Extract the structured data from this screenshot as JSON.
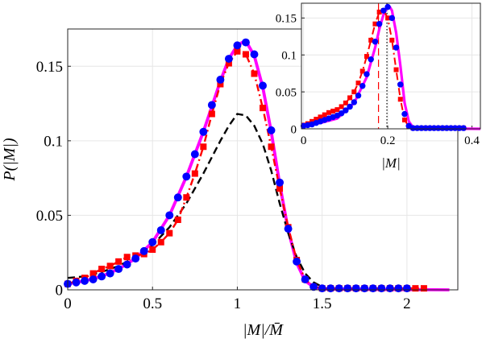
{
  "chart_data": [
    {
      "type": "line",
      "role": "main",
      "xlabel": "|M|/M̄",
      "ylabel": "P(|M|)",
      "xlim": [
        0,
        2.3
      ],
      "ylim": [
        0,
        0.175
      ],
      "xticks": [
        0,
        0.5,
        1,
        1.5,
        2
      ],
      "xtick_labels": [
        "0",
        "0.5",
        "1",
        "1.5",
        "2"
      ],
      "yticks": [
        0,
        0.05,
        0.1,
        0.15
      ],
      "ytick_labels": [
        "0",
        "0.05",
        "0.1",
        "0.15"
      ],
      "grid": true,
      "series": [
        {
          "style": "solid",
          "color": "#ff00ff",
          "x": [
            0,
            0.1,
            0.2,
            0.3,
            0.4,
            0.5,
            0.6,
            0.7,
            0.8,
            0.9,
            0.95,
            1.0,
            1.03,
            1.06,
            1.1,
            1.15,
            1.2,
            1.25,
            1.3,
            1.35,
            1.4,
            1.45,
            1.5,
            2.25
          ],
          "y": [
            0.004,
            0.006,
            0.009,
            0.014,
            0.021,
            0.032,
            0.05,
            0.076,
            0.106,
            0.14,
            0.155,
            0.164,
            0.166,
            0.165,
            0.157,
            0.136,
            0.106,
            0.071,
            0.04,
            0.018,
            0.006,
            0.002,
            0.0005,
            0.0
          ]
        },
        {
          "style": "dashed",
          "color": "#000000",
          "x": [
            0,
            0.1,
            0.2,
            0.3,
            0.4,
            0.5,
            0.6,
            0.7,
            0.8,
            0.9,
            0.95,
            1.0,
            1.05,
            1.1,
            1.15,
            1.2,
            1.25,
            1.3,
            1.35,
            1.4,
            1.45,
            1.5
          ],
          "y": [
            0.008,
            0.009,
            0.012,
            0.016,
            0.022,
            0.03,
            0.042,
            0.058,
            0.078,
            0.1,
            0.11,
            0.118,
            0.117,
            0.11,
            0.098,
            0.08,
            0.058,
            0.038,
            0.022,
            0.011,
            0.005,
            0.002
          ]
        },
        {
          "style": "dashdot",
          "color": "#ff0000",
          "marker": "square",
          "x": [
            0,
            0.05,
            0.1,
            0.15,
            0.2,
            0.25,
            0.3,
            0.35,
            0.4,
            0.45,
            0.5,
            0.55,
            0.6,
            0.65,
            0.7,
            0.75,
            0.8,
            0.85,
            0.9,
            0.95,
            1.0,
            1.05,
            1.1,
            1.15,
            1.2,
            1.25,
            1.3,
            1.35,
            1.4,
            1.45,
            1.5,
            1.55,
            1.6,
            1.65,
            1.7,
            1.75,
            1.8,
            1.85,
            1.9,
            1.95,
            2.0,
            2.05,
            2.1
          ],
          "y": [
            0.004,
            0.006,
            0.008,
            0.011,
            0.014,
            0.016,
            0.019,
            0.022,
            0.023,
            0.024,
            0.027,
            0.032,
            0.038,
            0.047,
            0.062,
            0.078,
            0.096,
            0.118,
            0.138,
            0.152,
            0.16,
            0.158,
            0.145,
            0.122,
            0.096,
            0.068,
            0.042,
            0.02,
            0.007,
            0.002,
            0.001,
            0.001,
            0.001,
            0.001,
            0.001,
            0.001,
            0.001,
            0.001,
            0.001,
            0.001,
            0.001,
            0.001,
            0.001
          ]
        },
        {
          "style": "markers",
          "color": "#0000ff",
          "marker": "circle",
          "x": [
            0,
            0.05,
            0.1,
            0.15,
            0.2,
            0.25,
            0.3,
            0.35,
            0.4,
            0.45,
            0.5,
            0.55,
            0.6,
            0.65,
            0.7,
            0.75,
            0.8,
            0.85,
            0.9,
            0.95,
            1.0,
            1.05,
            1.1,
            1.15,
            1.2,
            1.25,
            1.3,
            1.35,
            1.4,
            1.45,
            1.5,
            1.55,
            1.6,
            1.65,
            1.7,
            1.75,
            1.8,
            1.85,
            1.9,
            1.95,
            2.0
          ],
          "y": [
            0.004,
            0.005,
            0.006,
            0.007,
            0.009,
            0.011,
            0.014,
            0.017,
            0.021,
            0.026,
            0.032,
            0.04,
            0.05,
            0.062,
            0.076,
            0.091,
            0.106,
            0.124,
            0.141,
            0.155,
            0.164,
            0.166,
            0.158,
            0.137,
            0.107,
            0.072,
            0.041,
            0.019,
            0.007,
            0.002,
            0.001,
            0.001,
            0.001,
            0.001,
            0.001,
            0.001,
            0.001,
            0.001,
            0.001,
            0.001,
            0.001
          ]
        }
      ]
    },
    {
      "type": "line",
      "role": "inset",
      "xlabel": "|M|",
      "ylabel": "",
      "xlim": [
        -0.005,
        0.42
      ],
      "ylim": [
        0,
        0.17
      ],
      "xticks": [
        0,
        0.2,
        0.4
      ],
      "xtick_labels": [
        "0",
        "0.2",
        "0.4"
      ],
      "yticks": [
        0,
        0.05,
        0.1,
        0.15
      ],
      "ytick_labels": [
        "0",
        "0.05",
        "0.1",
        "0.15"
      ],
      "grid": true,
      "vlines": [
        {
          "x": 0.178,
          "color": "#ff0000",
          "style": "dashed"
        },
        {
          "x": 0.198,
          "color": "#000000",
          "style": "dotted"
        }
      ],
      "series": [
        {
          "style": "solid",
          "color": "#ff00ff",
          "x": [
            0,
            0.04,
            0.08,
            0.12,
            0.15,
            0.17,
            0.18,
            0.19,
            0.2,
            0.205,
            0.21,
            0.22,
            0.23,
            0.24,
            0.25,
            0.26,
            0.28,
            0.42
          ],
          "y": [
            0.004,
            0.008,
            0.014,
            0.035,
            0.07,
            0.11,
            0.135,
            0.155,
            0.165,
            0.165,
            0.16,
            0.13,
            0.085,
            0.035,
            0.01,
            0.002,
            0.0005,
            0.0
          ]
        },
        {
          "style": "dashdot",
          "color": "#ff0000",
          "marker": "square",
          "x": [
            0,
            0.01,
            0.02,
            0.03,
            0.04,
            0.05,
            0.06,
            0.07,
            0.08,
            0.09,
            0.1,
            0.11,
            0.12,
            0.13,
            0.14,
            0.15,
            0.16,
            0.17,
            0.18,
            0.19,
            0.2,
            0.21,
            0.22,
            0.23,
            0.24,
            0.25,
            0.26,
            0.27,
            0.28,
            0.29,
            0.3,
            0.31,
            0.32,
            0.33,
            0.34,
            0.35,
            0.36,
            0.37,
            0.38
          ],
          "y": [
            0.005,
            0.007,
            0.01,
            0.013,
            0.016,
            0.019,
            0.022,
            0.024,
            0.026,
            0.03,
            0.035,
            0.042,
            0.05,
            0.062,
            0.078,
            0.098,
            0.12,
            0.142,
            0.158,
            0.16,
            0.15,
            0.12,
            0.08,
            0.04,
            0.012,
            0.003,
            0.001,
            0.001,
            0.001,
            0.001,
            0.001,
            0.001,
            0.001,
            0.001,
            0.001,
            0.001,
            0.001,
            0.001,
            0.001
          ]
        },
        {
          "style": "markers",
          "color": "#0000ff",
          "marker": "circle",
          "x": [
            0,
            0.01,
            0.02,
            0.03,
            0.04,
            0.05,
            0.06,
            0.07,
            0.08,
            0.09,
            0.1,
            0.11,
            0.12,
            0.13,
            0.14,
            0.15,
            0.16,
            0.17,
            0.18,
            0.19,
            0.2,
            0.21,
            0.22,
            0.23,
            0.24,
            0.25,
            0.26,
            0.27,
            0.28,
            0.29,
            0.3,
            0.31,
            0.32,
            0.33,
            0.34,
            0.35,
            0.36,
            0.37,
            0.38
          ],
          "y": [
            0.004,
            0.005,
            0.006,
            0.008,
            0.01,
            0.012,
            0.014,
            0.016,
            0.018,
            0.021,
            0.025,
            0.03,
            0.036,
            0.045,
            0.058,
            0.074,
            0.094,
            0.118,
            0.142,
            0.16,
            0.165,
            0.15,
            0.11,
            0.06,
            0.02,
            0.004,
            0.001,
            0.001,
            0.001,
            0.001,
            0.001,
            0.001,
            0.001,
            0.001,
            0.001,
            0.001,
            0.001,
            0.001,
            0.001
          ]
        }
      ]
    }
  ]
}
